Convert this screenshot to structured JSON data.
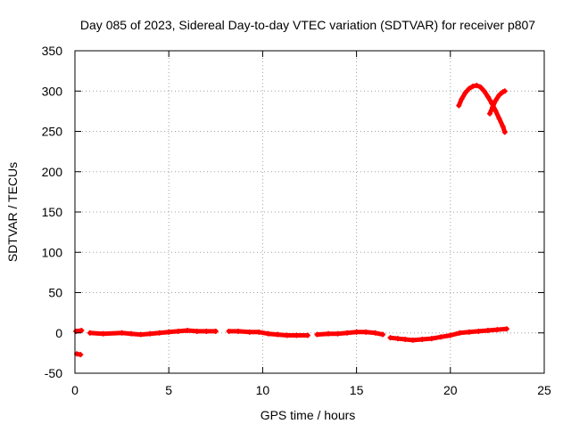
{
  "chart_data": {
    "type": "scatter",
    "title": "Day 085 of 2023, Sidereal Day-to-day VTEC variation (SDTVAR) for receiver p807",
    "xlabel": "GPS time / hours",
    "ylabel": "SDTVAR / TECUs",
    "xlim": [
      0,
      25
    ],
    "ylim": [
      -50,
      350
    ],
    "xticks": [
      0,
      5,
      10,
      15,
      20,
      25
    ],
    "yticks": [
      -50,
      0,
      50,
      100,
      150,
      200,
      250,
      300,
      350
    ],
    "grid": true,
    "series": [
      {
        "name": "SDTVAR",
        "color": "#ff0000",
        "segments": [
          [
            [
              0.05,
              2
            ],
            [
              0.35,
              3
            ]
          ],
          [
            [
              0.1,
              -26
            ],
            [
              0.3,
              -27
            ]
          ],
          [
            [
              0.8,
              0
            ],
            [
              1.5,
              -1
            ],
            [
              2.5,
              0
            ],
            [
              3.0,
              -1
            ],
            [
              3.5,
              -2
            ],
            [
              4.0,
              -1
            ],
            [
              4.5,
              0
            ],
            [
              5.0,
              1
            ],
            [
              5.5,
              2
            ],
            [
              6.0,
              3
            ],
            [
              6.5,
              2
            ],
            [
              7.0,
              2
            ],
            [
              7.5,
              2
            ]
          ],
          [
            [
              8.2,
              2
            ],
            [
              8.7,
              2
            ],
            [
              9.3,
              1
            ],
            [
              9.8,
              1
            ],
            [
              10.3,
              -1
            ],
            [
              10.8,
              -2
            ],
            [
              11.3,
              -3
            ],
            [
              11.8,
              -3
            ],
            [
              12.4,
              -3
            ]
          ],
          [
            [
              12.9,
              -2
            ],
            [
              13.5,
              -1
            ],
            [
              14.0,
              -1
            ],
            [
              14.5,
              0
            ],
            [
              15.0,
              1
            ],
            [
              15.5,
              1
            ],
            [
              16.0,
              0
            ],
            [
              16.4,
              -2
            ]
          ],
          [
            [
              16.8,
              -6
            ],
            [
              17.2,
              -7
            ],
            [
              17.6,
              -8
            ],
            [
              18.0,
              -9
            ],
            [
              18.5,
              -8
            ],
            [
              19.0,
              -7
            ],
            [
              19.5,
              -5
            ],
            [
              20.0,
              -3
            ],
            [
              20.5,
              0
            ],
            [
              21.0,
              1
            ],
            [
              21.5,
              2
            ],
            [
              22.0,
              3
            ],
            [
              22.5,
              4
            ],
            [
              23.0,
              5
            ]
          ],
          [
            [
              20.45,
              282
            ],
            [
              20.6,
              290
            ],
            [
              20.8,
              298
            ],
            [
              21.0,
              303
            ],
            [
              21.2,
              306
            ],
            [
              21.4,
              307
            ],
            [
              21.6,
              305
            ],
            [
              21.8,
              300
            ],
            [
              22.0,
              293
            ],
            [
              22.2,
              285
            ],
            [
              22.4,
              276
            ],
            [
              22.6,
              266
            ],
            [
              22.8,
              256
            ],
            [
              22.9,
              249
            ]
          ],
          [
            [
              22.1,
              272
            ],
            [
              22.25,
              280
            ],
            [
              22.4,
              288
            ],
            [
              22.6,
              295
            ],
            [
              22.8,
              299
            ],
            [
              22.9,
              300
            ]
          ]
        ]
      }
    ]
  }
}
